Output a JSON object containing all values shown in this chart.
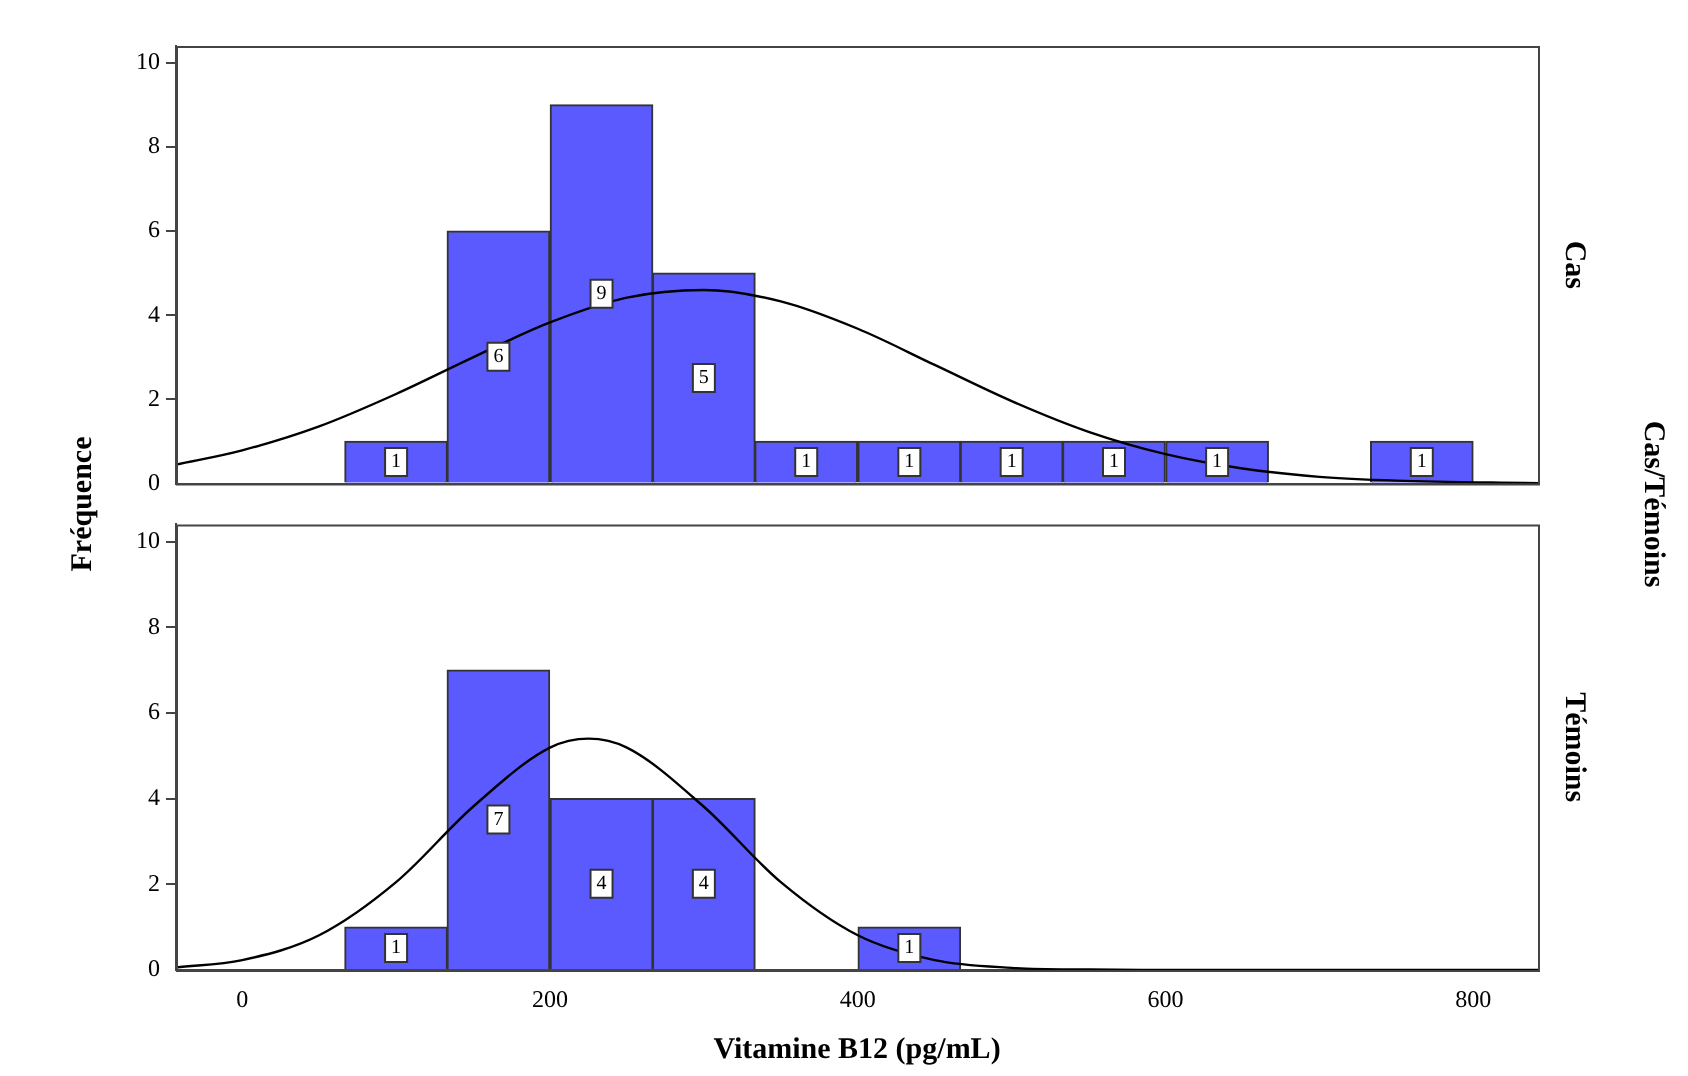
{
  "chart_data": [
    {
      "type": "histogram",
      "ylabel": "Fréquence",
      "y2label": "Cas",
      "annotations": [
        "Cas/Témoins"
      ],
      "bins": [
        67,
        133,
        200,
        267,
        333,
        400,
        467,
        533,
        600,
        667,
        733,
        800
      ],
      "values": [
        1,
        6,
        9,
        5,
        1,
        1,
        1,
        1,
        1,
        0,
        1
      ],
      "value_labels": [
        "1",
        "6",
        "9",
        "5",
        "1",
        "1",
        "1",
        "1",
        "1",
        null,
        "1"
      ],
      "color": "#5a5aff",
      "xlim": [
        -43,
        842
      ],
      "ylim": [
        0,
        10.4
      ],
      "xticks": [
        0,
        200,
        400,
        600,
        800
      ],
      "yticks": [
        0,
        2,
        4,
        6,
        8,
        10
      ],
      "tick_labels": "y",
      "grid": false,
      "legend": false,
      "series": [
        {
          "type": "line",
          "color": "#000000",
          "x": [
            -43,
            0,
            50,
            100,
            150,
            200,
            250,
            300,
            350,
            400,
            450,
            500,
            550,
            600,
            650,
            700,
            750,
            842
          ],
          "values": [
            0.45,
            0.79,
            1.36,
            2.13,
            3.0,
            3.83,
            4.42,
            4.6,
            4.33,
            3.68,
            2.82,
            1.96,
            1.23,
            0.7,
            0.36,
            0.16,
            0.07,
            0.01
          ]
        }
      ]
    },
    {
      "type": "histogram",
      "xlabel": "Vitamine B12 (pg/mL)",
      "y2label": "Témoins",
      "bins": [
        67,
        133,
        200,
        267,
        333,
        400,
        467
      ],
      "values": [
        1,
        7,
        4,
        4,
        0,
        1
      ],
      "value_labels": [
        "1",
        "7",
        "4",
        "4",
        null,
        "1"
      ],
      "color": "#5a5aff",
      "xlim": [
        -43,
        842
      ],
      "ylim": [
        0,
        10.4
      ],
      "xticks": [
        0,
        200,
        400,
        600,
        800
      ],
      "yticks": [
        0,
        2,
        4,
        6,
        8,
        10
      ],
      "grid": false,
      "legend": false,
      "series": [
        {
          "type": "line",
          "color": "#000000",
          "x": [
            -43,
            0,
            50,
            100,
            150,
            200,
            225,
            250,
            300,
            350,
            400,
            450,
            500,
            550,
            600,
            700,
            842
          ],
          "values": [
            0.06,
            0.23,
            0.81,
            2.05,
            3.81,
            5.19,
            5.4,
            5.19,
            3.81,
            2.05,
            0.81,
            0.23,
            0.05,
            0.01,
            0,
            0,
            0
          ]
        }
      ]
    }
  ]
}
